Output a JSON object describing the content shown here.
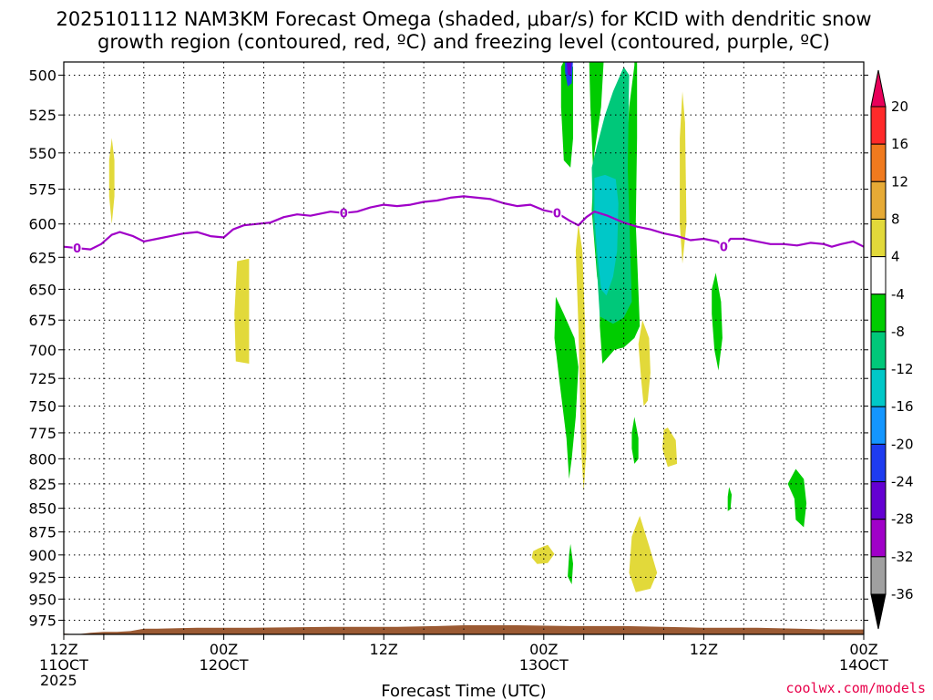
{
  "chart_data": {
    "type": "heatmap",
    "title_line1": "2025101112 NAM3KM Forecast Omega (shaded, μbar/s) for KCID with dendritic snow",
    "title_line2": "growth region (contoured, red, ºC) and freezing level (contoured, purple, ºC)",
    "xlabel": "Forecast Time (UTC)",
    "credit": "coolwx.com/models",
    "xlim": [
      0,
      60
    ],
    "x_ticks": [
      {
        "h": 0,
        "line1": "12Z",
        "line2": "11OCT",
        "line3": "2025"
      },
      {
        "h": 12,
        "line1": "00Z",
        "line2": "12OCT",
        "line3": ""
      },
      {
        "h": 24,
        "line1": "12Z",
        "line2": "",
        "line3": ""
      },
      {
        "h": 36,
        "line1": "00Z",
        "line2": "13OCT",
        "line3": ""
      },
      {
        "h": 48,
        "line1": "12Z",
        "line2": "",
        "line3": ""
      },
      {
        "h": 60,
        "line1": "00Z",
        "line2": "14OCT",
        "line3": ""
      }
    ],
    "ylim": [
      492,
      992
    ],
    "y_log": true,
    "y_ticks": [
      "500",
      "525",
      "550",
      "575",
      "600",
      "625",
      "650",
      "675",
      "700",
      "725",
      "750",
      "775",
      "800",
      "825",
      "850",
      "875",
      "900",
      "925",
      "950",
      "975"
    ],
    "colorbar": {
      "labels": [
        "20",
        "16",
        "12",
        "8",
        "4",
        "-4",
        "-8",
        "-12",
        "-16",
        "-20",
        "-24",
        "-28",
        "-32",
        "-36"
      ],
      "colors": [
        "#e8005a",
        "#ff2a2a",
        "#f07a1e",
        "#e6aa35",
        "#e2d93a",
        "#ffffff",
        "#00cc00",
        "#00c87a",
        "#00c8c8",
        "#1496ff",
        "#1e3cf0",
        "#6400d2",
        "#a000c8",
        "#a0a0a0",
        "#000000"
      ]
    },
    "freezing_level": {
      "label": "0",
      "color": "#a000c8",
      "label_at_hours": [
        1,
        21,
        37,
        49.5
      ],
      "points": [
        [
          0,
          617
        ],
        [
          1,
          618
        ],
        [
          2,
          619
        ],
        [
          2.8,
          615
        ],
        [
          3.6,
          608
        ],
        [
          4.2,
          606
        ],
        [
          5.2,
          609
        ],
        [
          6,
          613
        ],
        [
          7,
          611
        ],
        [
          8,
          609
        ],
        [
          9,
          607
        ],
        [
          10,
          606
        ],
        [
          11,
          609
        ],
        [
          12,
          610
        ],
        [
          12.7,
          604
        ],
        [
          13.5,
          601
        ],
        [
          14.5,
          600
        ],
        [
          15.5,
          599
        ],
        [
          16.5,
          595
        ],
        [
          17.5,
          593
        ],
        [
          18.5,
          594
        ],
        [
          19,
          593
        ],
        [
          20,
          591
        ],
        [
          21,
          592
        ],
        [
          22,
          591
        ],
        [
          23,
          588
        ],
        [
          24,
          586
        ],
        [
          25,
          587
        ],
        [
          26,
          586
        ],
        [
          27,
          584
        ],
        [
          28,
          583
        ],
        [
          29,
          581
        ],
        [
          30,
          580
        ],
        [
          31,
          581
        ],
        [
          32,
          582
        ],
        [
          33,
          585
        ],
        [
          34,
          587
        ],
        [
          35,
          586
        ],
        [
          36,
          590
        ],
        [
          37,
          592
        ],
        [
          38,
          598
        ],
        [
          38.6,
          601
        ],
        [
          39.2,
          595
        ],
        [
          39.8,
          591
        ],
        [
          40.8,
          594
        ],
        [
          42,
          599
        ],
        [
          43,
          602
        ],
        [
          44,
          604
        ],
        [
          45,
          607
        ],
        [
          46,
          609
        ],
        [
          47,
          612
        ],
        [
          48,
          611
        ],
        [
          49,
          613
        ],
        [
          49.5,
          617
        ],
        [
          50,
          611
        ],
        [
          51,
          611
        ],
        [
          52,
          613
        ],
        [
          53,
          615
        ],
        [
          54,
          615
        ],
        [
          55,
          616
        ],
        [
          56,
          614
        ],
        [
          57,
          615
        ],
        [
          57.6,
          617
        ],
        [
          58.3,
          615
        ],
        [
          59.2,
          613
        ],
        [
          60,
          617
        ]
      ]
    },
    "omega_regions": [
      {
        "level": "4",
        "color": "#e2d93a",
        "points": [
          [
            3.6,
            540
          ],
          [
            3.8,
            555
          ],
          [
            3.8,
            580
          ],
          [
            3.6,
            600
          ],
          [
            3.4,
            580
          ],
          [
            3.4,
            555
          ]
        ]
      },
      {
        "level": "4",
        "color": "#e2d93a",
        "points": [
          [
            13.0,
            628
          ],
          [
            13.9,
            626
          ],
          [
            13.9,
            712
          ],
          [
            12.9,
            710
          ],
          [
            12.8,
            670
          ]
        ]
      },
      {
        "level": "4",
        "color": "#e2d93a",
        "points": [
          [
            38.6,
            600
          ],
          [
            38.9,
            620
          ],
          [
            39.1,
            680
          ],
          [
            39.2,
            790
          ],
          [
            39.0,
            833
          ],
          [
            38.8,
            790
          ],
          [
            38.6,
            680
          ],
          [
            38.4,
            620
          ]
        ]
      },
      {
        "level": "4",
        "color": "#e2d93a",
        "points": [
          [
            43.4,
            675
          ],
          [
            43.9,
            690
          ],
          [
            44.0,
            720
          ],
          [
            43.8,
            745
          ],
          [
            43.5,
            750
          ],
          [
            43.3,
            725
          ],
          [
            43.1,
            695
          ]
        ]
      },
      {
        "level": "4",
        "color": "#e2d93a",
        "points": [
          [
            45.3,
            770
          ],
          [
            45.9,
            782
          ],
          [
            46.0,
            805
          ],
          [
            45.3,
            808
          ],
          [
            44.9,
            790
          ],
          [
            45.0,
            772
          ]
        ]
      },
      {
        "level": "4",
        "color": "#e2d93a",
        "points": [
          [
            43.2,
            858
          ],
          [
            43.9,
            890
          ],
          [
            44.5,
            920
          ],
          [
            44.0,
            938
          ],
          [
            42.9,
            942
          ],
          [
            42.4,
            920
          ],
          [
            42.6,
            880
          ]
        ]
      },
      {
        "level": "4",
        "color": "#e2d93a",
        "points": [
          [
            35.6,
            893
          ],
          [
            36.3,
            889
          ],
          [
            36.8,
            899
          ],
          [
            36.3,
            909
          ],
          [
            35.5,
            910
          ],
          [
            35.1,
            903
          ],
          [
            35.2,
            896
          ]
        ]
      },
      {
        "level": "4",
        "color": "#e2d93a",
        "points": [
          [
            46.4,
            510
          ],
          [
            46.6,
            530
          ],
          [
            46.7,
            600
          ],
          [
            46.4,
            630
          ],
          [
            46.2,
            600
          ],
          [
            46.2,
            540
          ]
        ]
      },
      {
        "level": "-4",
        "color": "#00cc00",
        "points": [
          [
            37.6,
            490
          ],
          [
            38.2,
            495
          ],
          [
            38.2,
            540
          ],
          [
            38.0,
            560
          ],
          [
            37.5,
            555
          ],
          [
            37.3,
            520
          ],
          [
            37.3,
            495
          ]
        ]
      },
      {
        "level": "-4",
        "color": "#00cc00",
        "points": [
          [
            39.4,
            490
          ],
          [
            40.5,
            490
          ],
          [
            40.3,
            520
          ],
          [
            39.8,
            550
          ],
          [
            39.6,
            590
          ],
          [
            40.0,
            640
          ],
          [
            40.4,
            660
          ],
          [
            41.0,
            655
          ],
          [
            41.3,
            620
          ],
          [
            41.6,
            600
          ],
          [
            42.0,
            580
          ],
          [
            42.2,
            550
          ],
          [
            42.4,
            520
          ],
          [
            42.8,
            494
          ],
          [
            42.8,
            490
          ],
          [
            43.0,
            490
          ],
          [
            43.0,
            540
          ],
          [
            42.9,
            600
          ],
          [
            43.2,
            680
          ],
          [
            42.8,
            690
          ],
          [
            42.0,
            698
          ],
          [
            41.3,
            700
          ],
          [
            40.4,
            712
          ],
          [
            40.2,
            680
          ],
          [
            40.2,
            630
          ],
          [
            40.0,
            600
          ],
          [
            39.7,
            560
          ],
          [
            39.5,
            520
          ]
        ]
      },
      {
        "level": "-4",
        "color": "#00cc00",
        "points": [
          [
            36.9,
            656
          ],
          [
            37.5,
            670
          ],
          [
            38.3,
            690
          ],
          [
            38.6,
            715
          ],
          [
            38.4,
            760
          ],
          [
            38.1,
            800
          ],
          [
            37.9,
            820
          ],
          [
            37.7,
            780
          ],
          [
            37.2,
            730
          ],
          [
            36.8,
            690
          ]
        ]
      },
      {
        "level": "-4",
        "color": "#00cc00",
        "points": [
          [
            42.8,
            760
          ],
          [
            43.1,
            780
          ],
          [
            43.1,
            800
          ],
          [
            42.8,
            805
          ],
          [
            42.6,
            790
          ],
          [
            42.6,
            775
          ]
        ]
      },
      {
        "level": "-4",
        "color": "#00cc00",
        "points": [
          [
            48.9,
            637
          ],
          [
            49.3,
            660
          ],
          [
            49.4,
            690
          ],
          [
            49.1,
            718
          ],
          [
            48.8,
            700
          ],
          [
            48.6,
            670
          ],
          [
            48.6,
            650
          ]
        ]
      },
      {
        "level": "-4",
        "color": "#00cc00",
        "points": [
          [
            49.9,
            828
          ],
          [
            50.1,
            836
          ],
          [
            50.0,
            851
          ],
          [
            49.8,
            853
          ],
          [
            49.8,
            838
          ]
        ]
      },
      {
        "level": "-4",
        "color": "#00cc00",
        "points": [
          [
            54.9,
            810
          ],
          [
            55.5,
            820
          ],
          [
            55.7,
            845
          ],
          [
            55.5,
            870
          ],
          [
            54.9,
            862
          ],
          [
            54.8,
            840
          ],
          [
            54.3,
            825
          ]
        ]
      },
      {
        "level": "-4",
        "color": "#00cc00",
        "points": [
          [
            38.0,
            888
          ],
          [
            38.2,
            910
          ],
          [
            38.1,
            933
          ],
          [
            37.8,
            924
          ],
          [
            37.9,
            900
          ]
        ]
      },
      {
        "level": "-8",
        "color": "#00c87a",
        "points": [
          [
            39.6,
            560
          ],
          [
            40.0,
            545
          ],
          [
            40.6,
            525
          ],
          [
            41.2,
            510
          ],
          [
            42.0,
            495
          ],
          [
            42.4,
            500
          ],
          [
            42.3,
            560
          ],
          [
            42.5,
            625
          ],
          [
            42.6,
            660
          ],
          [
            42.0,
            673
          ],
          [
            41.2,
            678
          ],
          [
            40.2,
            672
          ],
          [
            39.9,
            620
          ],
          [
            39.7,
            600
          ]
        ]
      },
      {
        "level": "-12",
        "color": "#00c8c8",
        "points": [
          [
            39.8,
            567
          ],
          [
            40.6,
            565
          ],
          [
            41.4,
            568
          ],
          [
            41.6,
            585
          ],
          [
            41.5,
            620
          ],
          [
            41.2,
            640
          ],
          [
            40.7,
            655
          ],
          [
            40.3,
            650
          ],
          [
            40.0,
            620
          ],
          [
            39.8,
            595
          ]
        ]
      },
      {
        "level": "-20",
        "color": "#1e3cf0",
        "points": [
          [
            37.6,
            490
          ],
          [
            38.2,
            490
          ],
          [
            38.1,
            505
          ],
          [
            37.8,
            507
          ],
          [
            37.6,
            498
          ]
        ]
      },
      {
        "level": "-28",
        "color": "#6400d2",
        "points": [
          [
            37.7,
            490
          ],
          [
            38.1,
            490
          ],
          [
            38.0,
            500
          ],
          [
            37.8,
            500
          ]
        ]
      }
    ],
    "terrain": {
      "color": "#9b5a33",
      "points": [
        [
          0,
          991
        ],
        [
          1,
          992
        ],
        [
          2,
          990
        ],
        [
          3,
          989
        ],
        [
          4,
          989
        ],
        [
          5,
          988
        ],
        [
          6,
          985
        ],
        [
          7,
          985
        ],
        [
          10,
          984
        ],
        [
          14,
          984
        ],
        [
          20,
          983
        ],
        [
          25,
          983
        ],
        [
          28,
          982
        ],
        [
          30,
          981
        ],
        [
          34,
          981
        ],
        [
          38,
          982
        ],
        [
          42,
          982
        ],
        [
          45,
          983
        ],
        [
          48,
          984
        ],
        [
          52,
          984
        ],
        [
          55,
          985
        ],
        [
          57,
          986
        ],
        [
          60,
          986
        ]
      ]
    }
  }
}
